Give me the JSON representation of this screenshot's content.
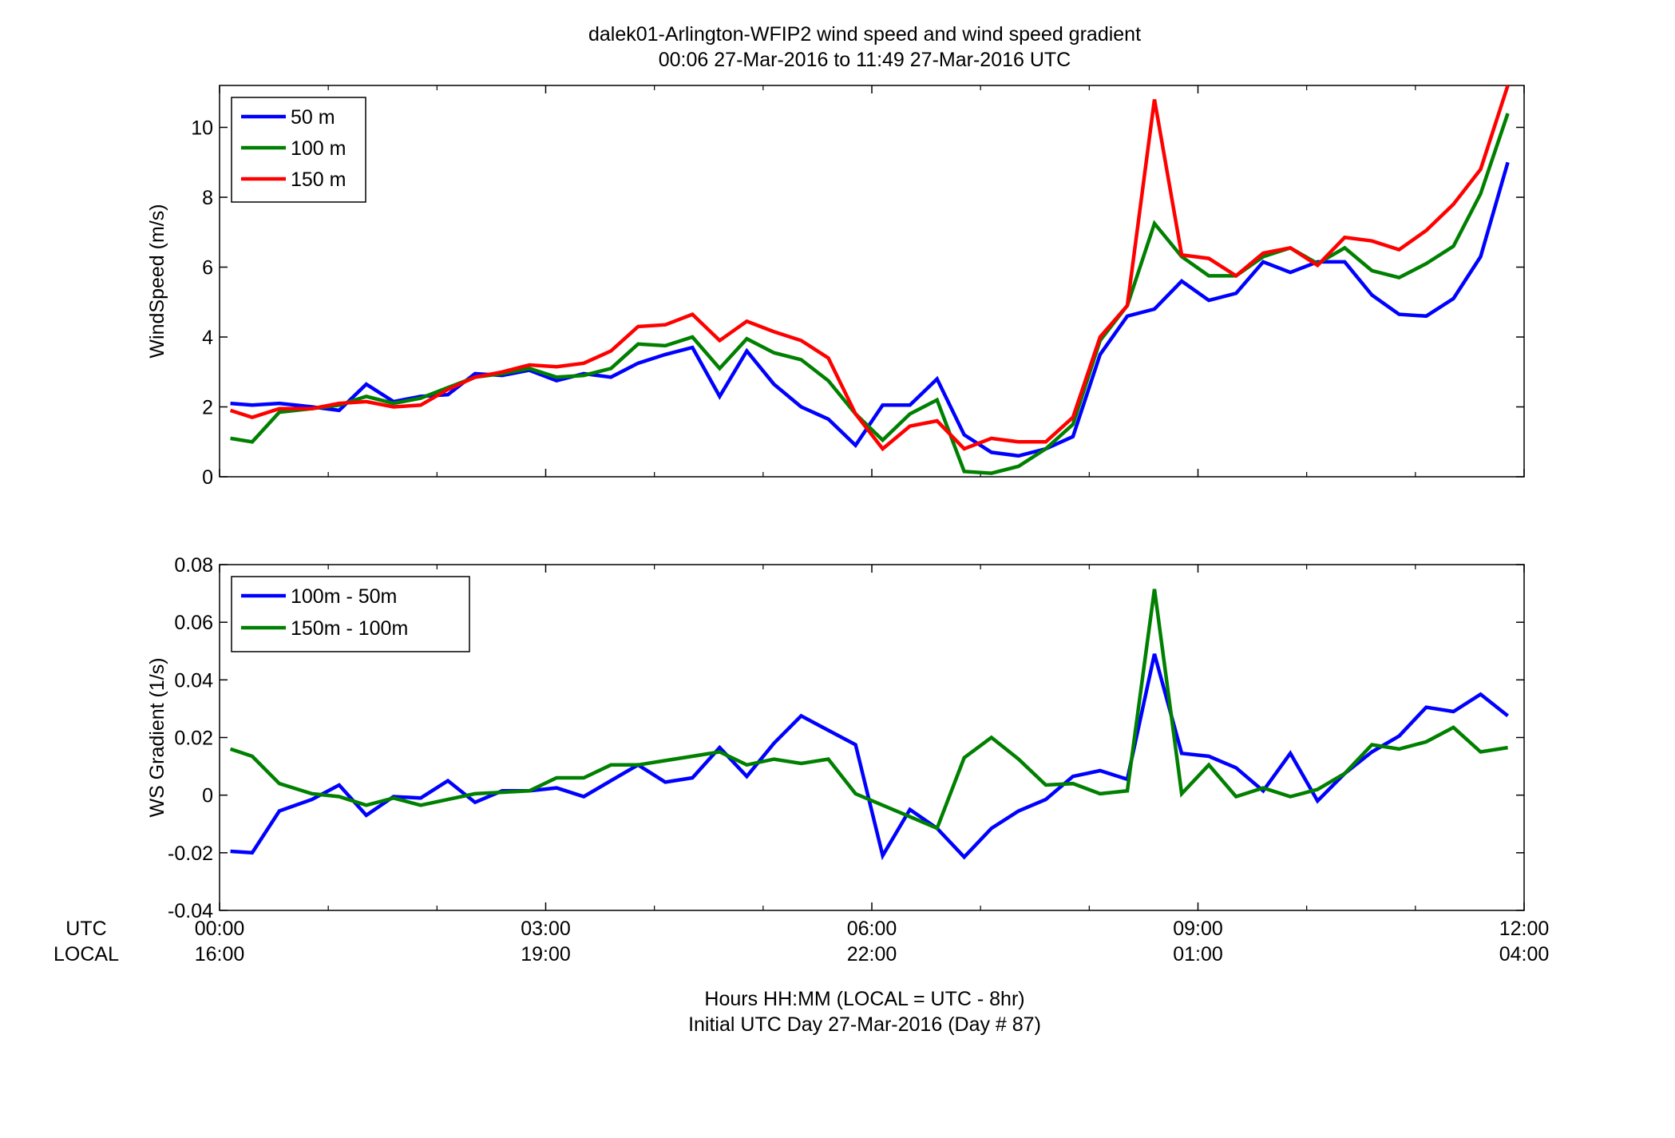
{
  "figure": {
    "title_line1": "dalek01-Arlington-WFIP2  wind speed and wind speed gradient",
    "title_line2": "00:06 27-Mar-2016 to 11:49 27-Mar-2016  UTC",
    "xlabel_line1": "Hours HH:MM  (LOCAL = UTC - 8hr)",
    "xlabel_line2": "Initial UTC Day 27-Mar-2016 (Day # 87)",
    "row_label_utc": "UTC",
    "row_label_local": "LOCAL"
  },
  "colors": {
    "blue": "#0000ff",
    "green": "#008000",
    "red": "#ff0000"
  },
  "chart_data": [
    {
      "type": "line",
      "ylabel": "WindSpeed (m/s)",
      "xlim": [
        0,
        12
      ],
      "ylim": [
        0,
        11.2
      ],
      "yticks": [
        0,
        2,
        4,
        6,
        8,
        10
      ],
      "ytick_labels": [
        "0",
        "2",
        "4",
        "6",
        "8",
        "10"
      ],
      "xticks": [
        0,
        3,
        6,
        9,
        12
      ],
      "xtick_labels_utc": [
        "00:00",
        "03:00",
        "06:00",
        "09:00",
        "12:00"
      ],
      "xtick_labels_local": [
        "16:00",
        "19:00",
        "22:00",
        "01:00",
        "04:00"
      ],
      "grid": false,
      "legend_location": "top-left",
      "x": [
        0.1,
        0.3,
        0.55,
        0.85,
        1.1,
        1.35,
        1.6,
        1.85,
        2.1,
        2.35,
        2.6,
        2.85,
        3.1,
        3.35,
        3.6,
        3.85,
        4.1,
        4.35,
        4.6,
        4.85,
        5.1,
        5.35,
        5.6,
        5.85,
        6.1,
        6.35,
        6.6,
        6.85,
        7.1,
        7.35,
        7.6,
        7.85,
        8.1,
        8.35,
        8.6,
        8.85,
        9.1,
        9.35,
        9.6,
        9.85,
        10.1,
        10.35,
        10.6,
        10.85,
        11.1,
        11.35,
        11.6,
        11.85
      ],
      "series": [
        {
          "name": "50 m",
          "color": "blue",
          "values": [
            2.1,
            2.05,
            2.1,
            2.0,
            1.9,
            2.65,
            2.15,
            2.3,
            2.35,
            2.95,
            2.9,
            3.05,
            2.75,
            2.95,
            2.85,
            3.25,
            3.5,
            3.7,
            2.3,
            3.6,
            2.65,
            2.0,
            1.65,
            0.9,
            2.05,
            2.05,
            2.8,
            1.2,
            0.7,
            0.6,
            0.8,
            1.15,
            3.5,
            4.6,
            4.8,
            5.6,
            5.05,
            5.25,
            6.15,
            5.85,
            6.15,
            6.15,
            5.2,
            4.65,
            4.6,
            5.1,
            6.3,
            9.0
          ]
        },
        {
          "name": "100 m",
          "color": "green",
          "values": [
            1.1,
            1.0,
            1.85,
            1.95,
            2.05,
            2.3,
            2.1,
            2.25,
            2.55,
            2.85,
            2.95,
            3.1,
            2.85,
            2.9,
            3.1,
            3.8,
            3.75,
            4.0,
            3.1,
            3.95,
            3.55,
            3.35,
            2.75,
            1.8,
            1.05,
            1.8,
            2.2,
            0.15,
            0.1,
            0.3,
            0.8,
            1.5,
            3.9,
            4.9,
            7.25,
            6.3,
            5.75,
            5.75,
            6.3,
            6.55,
            6.1,
            6.55,
            5.9,
            5.7,
            6.1,
            6.6,
            8.1,
            10.4
          ]
        },
        {
          "name": "150 m",
          "color": "red",
          "values": [
            1.9,
            1.7,
            1.95,
            1.95,
            2.1,
            2.15,
            2.0,
            2.05,
            2.5,
            2.85,
            3.0,
            3.2,
            3.15,
            3.25,
            3.6,
            4.3,
            4.35,
            4.65,
            3.9,
            4.45,
            4.15,
            3.9,
            3.4,
            1.8,
            0.8,
            1.45,
            1.6,
            0.8,
            1.1,
            1.0,
            1.0,
            1.7,
            4.0,
            4.9,
            10.8,
            6.35,
            6.25,
            5.75,
            6.4,
            6.55,
            6.05,
            6.85,
            6.75,
            6.5,
            7.05,
            7.8,
            8.8,
            11.2
          ]
        }
      ]
    },
    {
      "type": "line",
      "ylabel": "WS Gradient (1/s)",
      "xlim": [
        0,
        12
      ],
      "ylim": [
        -0.04,
        0.08
      ],
      "yticks": [
        -0.04,
        -0.02,
        0,
        0.02,
        0.04,
        0.06,
        0.08
      ],
      "ytick_labels": [
        "-0.04",
        "-0.02",
        "0",
        "0.02",
        "0.04",
        "0.06",
        "0.08"
      ],
      "xticks": [
        0,
        3,
        6,
        9,
        12
      ],
      "xtick_labels_utc": [
        "00:00",
        "03:00",
        "06:00",
        "09:00",
        "12:00"
      ],
      "xtick_labels_local": [
        "16:00",
        "19:00",
        "22:00",
        "01:00",
        "04:00"
      ],
      "grid": false,
      "legend_location": "top-left",
      "x": [
        0.1,
        0.3,
        0.55,
        0.85,
        1.1,
        1.35,
        1.6,
        1.85,
        2.1,
        2.35,
        2.6,
        2.85,
        3.1,
        3.35,
        3.6,
        3.85,
        4.1,
        4.35,
        4.6,
        4.85,
        5.1,
        5.35,
        5.6,
        5.85,
        6.1,
        6.35,
        6.6,
        6.85,
        7.1,
        7.35,
        7.6,
        7.85,
        8.1,
        8.35,
        8.6,
        8.85,
        9.1,
        9.35,
        9.6,
        9.85,
        10.1,
        10.35,
        10.6,
        10.85,
        11.1,
        11.35,
        11.6,
        11.85
      ],
      "series": [
        {
          "name": "100m - 50m",
          "color": "blue",
          "values": [
            -0.0195,
            -0.02,
            -0.0055,
            -0.0015,
            0.0035,
            -0.007,
            -0.0005,
            -0.001,
            0.005,
            -0.0025,
            0.0015,
            0.0015,
            0.0025,
            -0.0005,
            0.005,
            0.0105,
            0.0045,
            0.006,
            0.0165,
            0.0065,
            0.018,
            0.0275,
            0.0225,
            0.0175,
            -0.021,
            -0.005,
            -0.0115,
            -0.0215,
            -0.0115,
            -0.0055,
            -0.0015,
            0.0065,
            0.0085,
            0.0055,
            0.049,
            0.0145,
            0.0135,
            0.0095,
            0.0015,
            0.0145,
            -0.002,
            0.0075,
            0.015,
            0.0205,
            0.0305,
            0.029,
            0.035,
            0.0275
          ]
        },
        {
          "name": "150m - 100m",
          "color": "green",
          "values": [
            0.016,
            0.0135,
            0.004,
            0.0005,
            -0.0005,
            -0.0035,
            -0.001,
            -0.0035,
            -0.0015,
            0.0005,
            0.001,
            0.0015,
            0.006,
            0.006,
            0.0105,
            0.0105,
            0.012,
            0.0135,
            0.015,
            0.0105,
            0.0125,
            0.011,
            0.0125,
            0.0005,
            -0.0035,
            -0.0075,
            -0.0115,
            0.013,
            0.02,
            0.0125,
            0.0035,
            0.004,
            0.0005,
            0.0015,
            0.0715,
            0.0005,
            0.0105,
            -0.0005,
            0.0025,
            -0.0005,
            0.002,
            0.0075,
            0.0175,
            0.016,
            0.0185,
            0.0235,
            0.015,
            0.0165
          ]
        }
      ]
    }
  ]
}
